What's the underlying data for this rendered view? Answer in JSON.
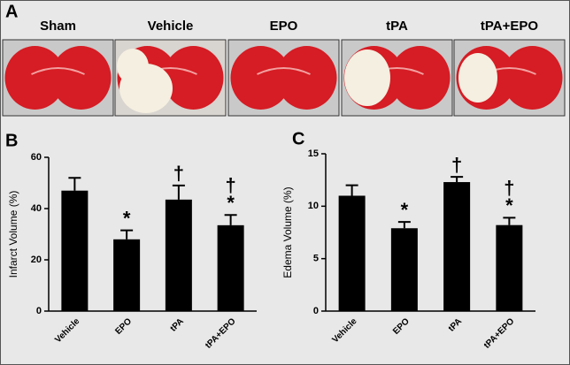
{
  "panel_a": {
    "panel_label": "A",
    "labels": [
      "Sham",
      "Vehicle",
      "EPO",
      "tPA",
      "tPA+EPO"
    ]
  },
  "chart_data": [
    {
      "type": "bar",
      "panel_label": "B",
      "y_label": "Infarct Volume (%)",
      "categories": [
        "Vehicle",
        "EPO",
        "tPA",
        "tPA+EPO"
      ],
      "values": [
        47,
        28,
        43.5,
        33.5
      ],
      "errors": [
        5,
        3.5,
        5.5,
        4
      ],
      "annotations": [
        null,
        [
          "*"
        ],
        [
          "†"
        ],
        [
          "†",
          "*"
        ]
      ],
      "color": "#000000",
      "ylim": [
        0,
        60
      ],
      "yticks": [
        0,
        20,
        40,
        60
      ]
    },
    {
      "type": "bar",
      "panel_label": "C",
      "y_label": "Edema Volume (%)",
      "categories": [
        "Vehicle",
        "EPO",
        "tPA",
        "tPA+EPO"
      ],
      "values": [
        11,
        7.9,
        12.3,
        8.2
      ],
      "errors": [
        1,
        0.6,
        0.5,
        0.7
      ],
      "annotations": [
        null,
        [
          "*"
        ],
        [
          "†"
        ],
        [
          "†",
          "*"
        ]
      ],
      "color": "#000000",
      "ylim": [
        0,
        15
      ],
      "yticks": [
        0,
        5,
        10,
        15
      ]
    }
  ]
}
